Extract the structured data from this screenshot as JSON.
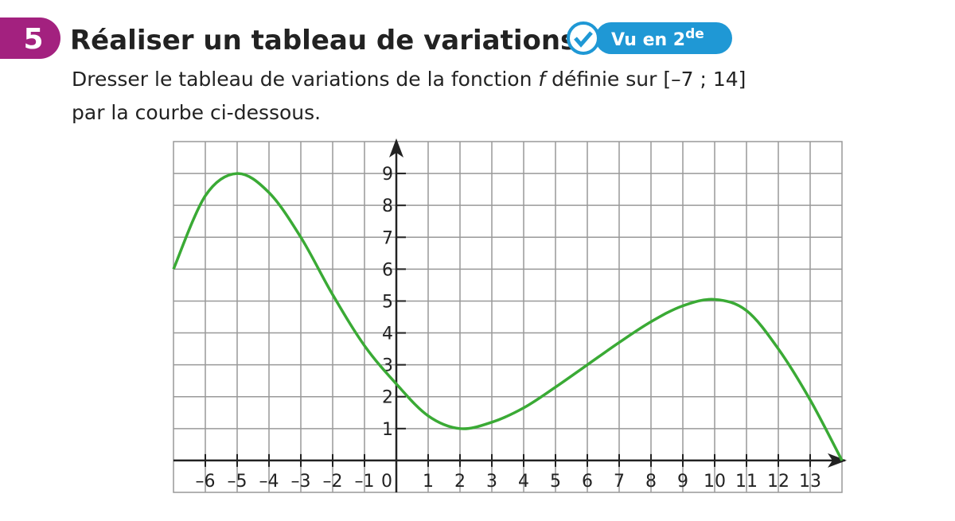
{
  "header": {
    "number": "5",
    "title": "Réaliser un tableau de variations",
    "badge": {
      "text": "Vu en 2",
      "sup": "de"
    }
  },
  "instruction": {
    "line1": [
      "Dresser le tableau de variations de la fonction ",
      "f",
      " définie sur [–7 ; 14]"
    ],
    "line2": "par la courbe ci-dessous."
  },
  "chart_data": {
    "type": "line",
    "color": "#3aaa35",
    "grid": true,
    "x": [
      -7,
      -6,
      -5,
      -4,
      -3,
      -2,
      -1,
      0,
      1,
      2,
      3,
      4,
      5,
      6,
      7,
      8,
      9,
      10,
      11,
      12,
      13,
      14
    ],
    "values": [
      6,
      8.3,
      9,
      8.4,
      7,
      5.2,
      3.6,
      2.4,
      1.4,
      1,
      1.2,
      1.65,
      2.3,
      3,
      3.7,
      4.35,
      4.85,
      5.05,
      4.7,
      3.5,
      1.9,
      0
    ],
    "xlim": [
      -7,
      14
    ],
    "ylim": [
      -1,
      10
    ],
    "xticks": [
      {
        "value": -6,
        "label": "–6"
      },
      {
        "value": -5,
        "label": "–5"
      },
      {
        "value": -4,
        "label": "–4"
      },
      {
        "value": -3,
        "label": "–3"
      },
      {
        "value": -2,
        "label": "–2"
      },
      {
        "value": -1,
        "label": "–1"
      },
      0,
      1,
      2,
      3,
      4,
      5,
      6,
      7,
      8,
      9,
      10,
      11,
      12,
      13
    ],
    "yticks": [
      1,
      2,
      3,
      4,
      5,
      6,
      7,
      8,
      9
    ]
  }
}
